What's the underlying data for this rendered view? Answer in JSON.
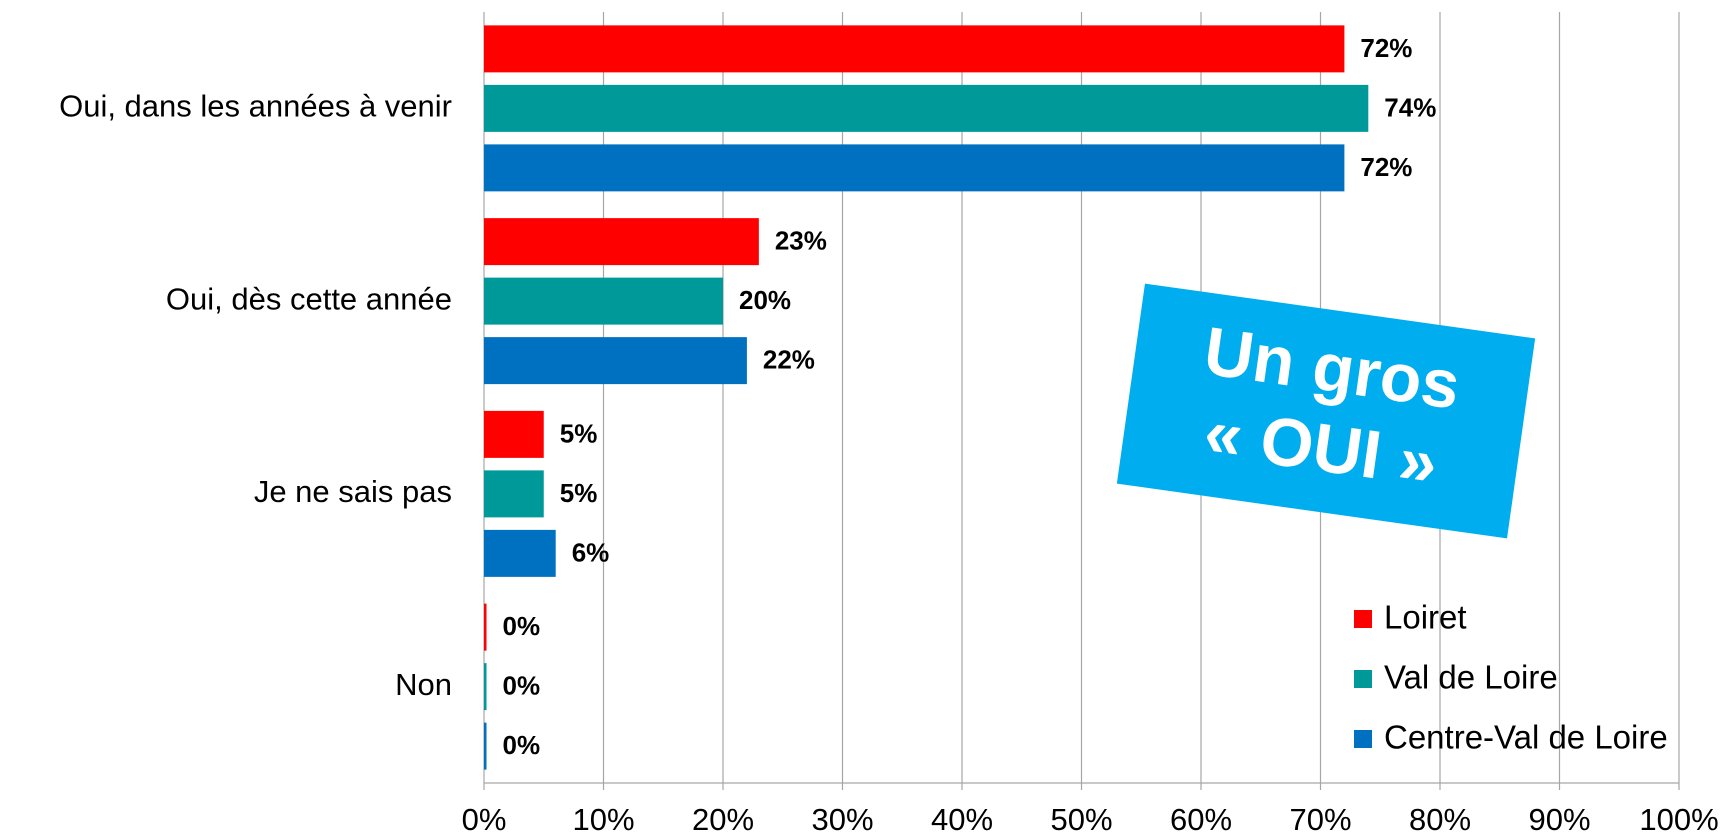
{
  "chart_data": {
    "type": "bar",
    "orientation": "horizontal",
    "categories": [
      "Oui, dans les années à venir",
      "Oui, dès cette année",
      "Je ne sais pas",
      "Non"
    ],
    "series": [
      {
        "name": "Loiret",
        "color": "#ff0000",
        "values": [
          72,
          23,
          5,
          0
        ],
        "value_labels": [
          "72%",
          "23%",
          "5%",
          "0%"
        ]
      },
      {
        "name": "Val de Loire",
        "color": "#009999",
        "values": [
          74,
          20,
          5,
          0
        ],
        "value_labels": [
          "74%",
          "20%",
          "5%",
          "0%"
        ]
      },
      {
        "name": "Centre-Val de Loire",
        "color": "#0070c0",
        "values": [
          72,
          22,
          6,
          0
        ],
        "value_labels": [
          "72%",
          "22%",
          "6%",
          "0%"
        ]
      }
    ],
    "xlim": [
      0,
      100
    ],
    "xticks": [
      {
        "value": 0,
        "label": "0%"
      },
      {
        "value": 10,
        "label": "10%"
      },
      {
        "value": 20,
        "label": "20%"
      },
      {
        "value": 30,
        "label": "30%"
      },
      {
        "value": 40,
        "label": "40%"
      },
      {
        "value": 50,
        "label": "50%"
      },
      {
        "value": 60,
        "label": "60%"
      },
      {
        "value": 70,
        "label": "70%"
      },
      {
        "value": 80,
        "label": "80%"
      },
      {
        "value": 90,
        "label": "90%"
      },
      {
        "value": 100,
        "label": "100%"
      }
    ],
    "grid": true,
    "legend": "lower right",
    "annotations": [
      "Un gros",
      "« OUI »"
    ],
    "annotation_color": "#00aeef"
  }
}
